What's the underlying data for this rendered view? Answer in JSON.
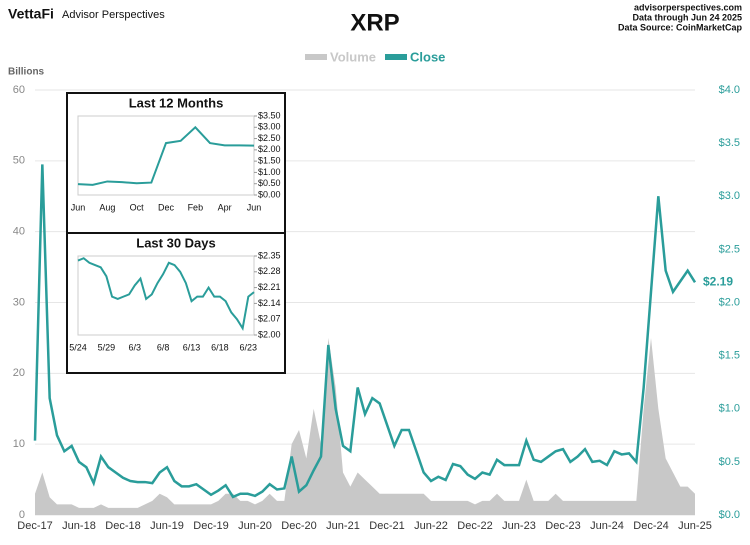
{
  "header": {
    "logo": "VettaFi",
    "brand": "Advisor Perspectives",
    "site": "advisorperspectives.com",
    "data_through": "Data through Jun 24 2025",
    "source": "Data Source: CoinMarketCap"
  },
  "chart_data": [
    {
      "type": "combo",
      "title": "XRP",
      "y_label": "Billions",
      "categories": [
        "Dec-17",
        null,
        null,
        null,
        null,
        null,
        "Jun-18",
        null,
        null,
        null,
        null,
        null,
        "Dec-18",
        null,
        null,
        null,
        null,
        null,
        "Jun-19",
        null,
        null,
        null,
        null,
        null,
        "Dec-19",
        null,
        null,
        null,
        null,
        null,
        "Jun-20",
        null,
        null,
        null,
        null,
        null,
        "Dec-20",
        null,
        null,
        null,
        null,
        null,
        "Jun-21",
        null,
        null,
        null,
        null,
        null,
        "Dec-21",
        null,
        null,
        null,
        null,
        null,
        "Jun-22",
        null,
        null,
        null,
        null,
        null,
        "Dec-22",
        null,
        null,
        null,
        null,
        null,
        "Jun-23",
        null,
        null,
        null,
        null,
        null,
        "Dec-23",
        null,
        null,
        null,
        null,
        null,
        "Jun-24",
        null,
        null,
        null,
        null,
        null,
        "Dec-24",
        null,
        null,
        null,
        null,
        null,
        "Jun-25"
      ],
      "series": [
        {
          "name": "Volume",
          "type": "area",
          "axis": "y",
          "color": "#c8c8c8",
          "values": [
            3,
            6,
            2.5,
            1.5,
            1.5,
            1.5,
            1,
            1,
            1,
            1.5,
            1,
            1,
            1,
            1,
            1,
            1.5,
            2,
            3,
            2.5,
            1.5,
            1.5,
            1.5,
            1.5,
            1.5,
            1.5,
            2,
            3,
            3,
            2,
            2,
            1.5,
            2,
            3,
            2,
            2,
            10,
            12,
            8,
            15,
            10,
            25,
            18,
            6,
            4,
            6,
            5,
            4,
            3,
            3,
            3,
            3,
            3,
            3,
            3,
            2,
            2,
            2,
            2,
            2,
            2,
            1.5,
            2,
            2,
            3,
            2,
            2,
            2,
            5,
            2,
            2,
            2,
            3,
            2,
            2,
            2,
            2,
            2,
            2,
            2,
            2,
            2,
            2,
            2,
            15,
            25,
            15,
            8,
            6,
            4,
            4,
            3
          ]
        },
        {
          "name": "Close",
          "type": "line",
          "axis": "y2",
          "color": "#2a9d9a",
          "values": [
            0.7,
            3.3,
            1.1,
            0.75,
            0.6,
            0.65,
            0.5,
            0.45,
            0.3,
            0.55,
            0.45,
            0.4,
            0.35,
            0.32,
            0.31,
            0.31,
            0.3,
            0.4,
            0.45,
            0.32,
            0.27,
            0.27,
            0.29,
            0.24,
            0.19,
            0.23,
            0.28,
            0.17,
            0.2,
            0.2,
            0.18,
            0.22,
            0.29,
            0.24,
            0.25,
            0.55,
            0.22,
            0.28,
            0.42,
            0.55,
            1.6,
            1.0,
            0.65,
            0.6,
            1.2,
            0.95,
            1.1,
            1.05,
            0.85,
            0.65,
            0.8,
            0.8,
            0.6,
            0.4,
            0.32,
            0.36,
            0.33,
            0.48,
            0.46,
            0.38,
            0.34,
            0.4,
            0.38,
            0.52,
            0.47,
            0.47,
            0.47,
            0.7,
            0.52,
            0.5,
            0.55,
            0.6,
            0.62,
            0.5,
            0.55,
            0.62,
            0.5,
            0.51,
            0.47,
            0.6,
            0.57,
            0.58,
            0.5,
            1.2,
            2.1,
            3.0,
            2.3,
            2.1,
            2.2,
            2.3,
            2.19
          ],
          "end_label": "$2.19"
        }
      ],
      "ylim": [
        0,
        60
      ],
      "yticks": [
        0,
        10,
        20,
        30,
        40,
        50,
        60
      ],
      "y2lim": [
        0,
        4
      ],
      "y2ticks": [
        {
          "value": 0,
          "label": "$0.0"
        },
        {
          "value": 0.5,
          "label": "$0.5"
        },
        {
          "value": 1,
          "label": "$1.0"
        },
        {
          "value": 1.5,
          "label": "$1.5"
        },
        {
          "value": 2,
          "label": "$2.0"
        },
        {
          "value": 2.5,
          "label": "$2.5"
        },
        {
          "value": 3,
          "label": "$3.0"
        },
        {
          "value": 3.5,
          "label": "$3.5"
        },
        {
          "value": 4,
          "label": "$4.0"
        }
      ],
      "grid": true
    },
    {
      "type": "line",
      "title": "Last 12 Months",
      "color": "#2a9d9a",
      "categories": [
        "Jun",
        null,
        "Aug",
        null,
        "Oct",
        null,
        "Dec",
        null,
        "Feb",
        null,
        "Apr",
        null,
        "Jun"
      ],
      "values": [
        0.48,
        0.45,
        0.6,
        0.57,
        0.52,
        0.55,
        2.3,
        2.4,
        3.0,
        2.3,
        2.2,
        2.2,
        2.19
      ],
      "ylim": [
        0,
        3.5
      ],
      "yticks": [
        {
          "value": 0,
          "label": "$0.00"
        },
        {
          "value": 0.5,
          "label": "$0.50"
        },
        {
          "value": 1,
          "label": "$1.00"
        },
        {
          "value": 1.5,
          "label": "$1.50"
        },
        {
          "value": 2,
          "label": "$2.00"
        },
        {
          "value": 2.5,
          "label": "$2.50"
        },
        {
          "value": 3,
          "label": "$3.00"
        },
        {
          "value": 3.5,
          "label": "$3.50"
        }
      ]
    },
    {
      "type": "line",
      "title": "Last 30 Days",
      "color": "#2a9d9a",
      "categories": [
        "5/24",
        null,
        null,
        null,
        null,
        "5/29",
        null,
        null,
        null,
        null,
        "6/3",
        null,
        null,
        null,
        null,
        "6/8",
        null,
        null,
        null,
        null,
        "6/13",
        null,
        null,
        null,
        null,
        "6/18",
        null,
        null,
        null,
        null,
        "6/23",
        null
      ],
      "values": [
        2.33,
        2.34,
        2.32,
        2.31,
        2.3,
        2.26,
        2.17,
        2.16,
        2.17,
        2.18,
        2.22,
        2.25,
        2.16,
        2.18,
        2.23,
        2.27,
        2.32,
        2.31,
        2.28,
        2.23,
        2.15,
        2.17,
        2.17,
        2.21,
        2.17,
        2.17,
        2.15,
        2.1,
        2.07,
        2.03,
        2.17,
        2.19
      ],
      "ylim": [
        2,
        2.35
      ],
      "yticks": [
        {
          "value": 2,
          "label": "$2.00"
        },
        {
          "value": 2.07,
          "label": "$2.07"
        },
        {
          "value": 2.14,
          "label": "$2.14"
        },
        {
          "value": 2.21,
          "label": "$2.21"
        },
        {
          "value": 2.28,
          "label": "$2.28"
        },
        {
          "value": 2.35,
          "label": "$2.35"
        }
      ]
    }
  ]
}
